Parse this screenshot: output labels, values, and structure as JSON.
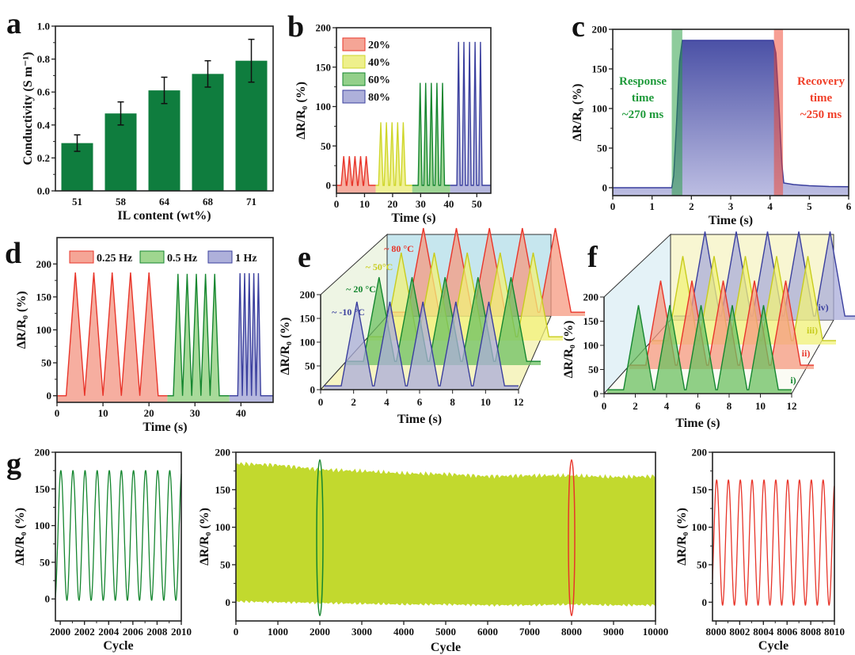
{
  "panel_labels": [
    "a",
    "b",
    "c",
    "d",
    "e",
    "f",
    "g"
  ],
  "chart_data": [
    {
      "panel": "a",
      "type": "bar",
      "categories": [
        "51",
        "58",
        "64",
        "68",
        "71"
      ],
      "values": [
        0.29,
        0.47,
        0.61,
        0.71,
        0.79
      ],
      "errors": [
        0.05,
        0.07,
        0.08,
        0.08,
        0.13
      ],
      "xlabel": "IL content (wt%)",
      "ylabel": "Conductivity (S m⁻¹)",
      "ylim": [
        0,
        1
      ],
      "yticks": [
        0,
        0.2,
        0.4,
        0.6,
        0.8,
        1.0
      ],
      "ytick_labels": [
        "0.0",
        "0.2",
        "0.4",
        "0.6",
        "0.8",
        "1.0"
      ],
      "color": "#0f7d3e"
    },
    {
      "panel": "b",
      "type": "area",
      "xlabel": "Time (s)",
      "ylabel": "ΔR/R₀ (%)",
      "xlim": [
        0,
        55
      ],
      "ylim": [
        -10,
        200
      ],
      "xticks": [
        0,
        10,
        20,
        30,
        40,
        50
      ],
      "yticks": [
        0,
        50,
        100,
        150,
        200
      ],
      "legend": "top-left",
      "series": [
        {
          "name": "20%",
          "color": "#e8352a",
          "fill": "#f5a596",
          "peak_value": 37,
          "peak_times": [
            2.6,
            4.6,
            6.6,
            8.6,
            10.6
          ],
          "half_width": 0.9,
          "x_range": [
            0,
            14
          ]
        },
        {
          "name": "40%",
          "color": "#cfd62a",
          "fill": "#eef08c",
          "peak_value": 80,
          "peak_times": [
            15.8,
            17.8,
            19.8,
            21.8,
            23.8
          ],
          "half_width": 0.8,
          "x_range": [
            14,
            27
          ]
        },
        {
          "name": "60%",
          "color": "#15862f",
          "fill": "#93d08a",
          "peak_value": 130,
          "peak_times": [
            29.8,
            31.8,
            33.8,
            35.8,
            37.8
          ],
          "half_width": 0.7,
          "x_range": [
            27,
            40.5
          ]
        },
        {
          "name": "80%",
          "color": "#3a3f9e",
          "fill": "#aeb0da",
          "peak_value": 182,
          "peak_times": [
            43.5,
            45.4,
            47.4,
            49.4,
            51.3
          ],
          "half_width": 0.6,
          "x_range": [
            40.5,
            55
          ]
        }
      ]
    },
    {
      "panel": "c",
      "type": "area",
      "xlabel": "Time (s)",
      "ylabel": "ΔR/R₀ (%)",
      "xlim": [
        0,
        6
      ],
      "ylim": [
        -10,
        200
      ],
      "xticks": [
        0,
        1,
        2,
        3,
        4,
        5,
        6
      ],
      "yticks": [
        0,
        50,
        100,
        150,
        200
      ],
      "x": [
        0,
        1.5,
        1.55,
        1.62,
        1.7,
        1.77,
        4.08,
        4.15,
        4.22,
        4.3,
        4.35,
        4.6,
        5,
        5.5,
        6
      ],
      "y": [
        0,
        0,
        15,
        80,
        160,
        186,
        186,
        170,
        110,
        30,
        6,
        4,
        2.5,
        1.5,
        1.2
      ],
      "color": "#3a3f9e",
      "response": {
        "x_range": [
          1.5,
          1.77
        ],
        "color": "#1e9a3a",
        "lines": [
          "Response",
          "time",
          "~270 ms"
        ]
      },
      "recovery": {
        "x_range": [
          4.1,
          4.33
        ],
        "color": "#f0402a",
        "lines": [
          "Recovery",
          "time",
          "~250 ms"
        ]
      }
    },
    {
      "panel": "d",
      "type": "area",
      "xlabel": "Time (s)",
      "ylabel": "ΔR/R₀ (%)",
      "xlim": [
        0,
        47
      ],
      "ylim": [
        -10,
        240
      ],
      "xticks": [
        0,
        10,
        20,
        30,
        40
      ],
      "yticks": [
        0,
        50,
        100,
        150,
        200
      ],
      "legend": "top",
      "series": [
        {
          "name": "0.25 Hz",
          "color": "#e8352a",
          "fill": "#f5a596",
          "peak_value": 187,
          "peak_times": [
            4,
            8,
            12,
            16,
            20
          ],
          "half_width": 2,
          "x_range": [
            0,
            24
          ]
        },
        {
          "name": "0.5 Hz",
          "color": "#15862f",
          "fill": "#9fd68f",
          "peak_value": 185,
          "peak_times": [
            26.3,
            28.3,
            30.3,
            32.3,
            34.3
          ],
          "half_width": 1,
          "x_range": [
            24,
            37.5
          ]
        },
        {
          "name": "1 Hz",
          "color": "#3a3f9e",
          "fill": "#aeb0da",
          "peak_value": 186,
          "peak_times": [
            39.8,
            40.8,
            41.8,
            42.8,
            43.8
          ],
          "half_width": 0.5,
          "x_range": [
            37.5,
            47
          ]
        }
      ]
    },
    {
      "panel": "e",
      "type": "area",
      "xlabel": "Time (s)",
      "ylabel": "ΔR/R₀ (%)",
      "xlim": [
        0,
        12
      ],
      "ylim": [
        0,
        200
      ],
      "xticks": [
        0,
        2,
        4,
        6,
        8,
        10,
        12
      ],
      "yticks": [
        0,
        50,
        100,
        150,
        200
      ],
      "series": [
        {
          "name": "~ -10 °C",
          "color": "#3a3f9e",
          "fill": "#a9acd9",
          "peak_value": 185,
          "peak_times": [
            2.2,
            4.2,
            6.2,
            8.2,
            10.2
          ]
        },
        {
          "name": "~ 20 °C",
          "color": "#15862f",
          "fill": "#6cc062",
          "peak_value": 185,
          "peak_times": [
            2.2,
            4.2,
            6.2,
            8.2,
            10.2
          ]
        },
        {
          "name": "~ 50°C",
          "color": "#c8cc1e",
          "fill": "#f1f27a",
          "peak_value": 185,
          "peak_times": [
            2.2,
            4.2,
            6.2,
            8.2,
            10.2
          ]
        },
        {
          "name": "~ 80 °C",
          "color": "#e8352a",
          "fill": "#f59a80",
          "peak_value": 185,
          "peak_times": [
            2.2,
            4.2,
            6.2,
            8.2,
            10.2
          ]
        }
      ]
    },
    {
      "panel": "f",
      "type": "area",
      "xlabel": "Time (s)",
      "ylabel": "ΔR/R₀ (%)",
      "xlim": [
        0,
        12
      ],
      "ylim": [
        0,
        200
      ],
      "xticks": [
        0,
        2,
        4,
        6,
        8,
        10,
        12
      ],
      "yticks": [
        0,
        50,
        100,
        150,
        200
      ],
      "series": [
        {
          "name": "i)",
          "color": "#15862f",
          "fill": "#6cc062",
          "peak_value": 183,
          "peak_times": [
            2.2,
            4.2,
            6.2,
            8.2,
            10.2
          ]
        },
        {
          "name": "ii)",
          "color": "#e8352a",
          "fill": "#f59a80",
          "peak_value": 183,
          "peak_times": [
            2.2,
            4.2,
            6.2,
            8.2,
            10.2
          ]
        },
        {
          "name": "iii)",
          "color": "#c8cc1e",
          "fill": "#f1f27a",
          "peak_value": 183,
          "peak_times": [
            2.2,
            4.2,
            6.2,
            8.2,
            10.2
          ]
        },
        {
          "name": "iv)",
          "color": "#3a3f9e",
          "fill": "#a9acd9",
          "peak_value": 183,
          "peak_times": [
            2.2,
            4.2,
            6.2,
            8.2,
            10.2
          ]
        }
      ]
    },
    {
      "panel": "g-left",
      "type": "line",
      "xlabel": "Cycle",
      "ylabel": "ΔR/R₀ (%)",
      "xlim": [
        1999.6,
        2010
      ],
      "ylim": [
        -30,
        200
      ],
      "xticks": [
        2000,
        2002,
        2004,
        2006,
        2008,
        2010
      ],
      "yticks": [
        0,
        50,
        100,
        150,
        200
      ],
      "amplitude": 175,
      "minimum": -2,
      "color": "#15862f"
    },
    {
      "panel": "g-middle",
      "type": "area",
      "xlabel": "Cycle",
      "ylabel": "ΔR/R₀ (%)",
      "xlim": [
        0,
        10000
      ],
      "ylim": [
        -25,
        200
      ],
      "xticks": [
        0,
        1000,
        2000,
        3000,
        4000,
        5000,
        6000,
        7000,
        8000,
        9000,
        10000
      ],
      "yticks": [
        0,
        50,
        100,
        150,
        200
      ],
      "x": [
        0,
        1000,
        2000,
        3000,
        4000,
        5000,
        6000,
        7000,
        8000,
        9000,
        10000
      ],
      "upper": [
        185,
        183,
        177,
        175,
        172,
        171,
        168,
        169,
        169,
        167,
        168
      ],
      "lower": [
        1,
        0,
        -1,
        -2,
        -3,
        -3,
        -4,
        -4,
        -3,
        -4,
        -4
      ],
      "color": "#c2d92e",
      "highlights": [
        {
          "x": 2000,
          "color": "#15862f"
        },
        {
          "x": 8000,
          "color": "#e8352a"
        }
      ]
    },
    {
      "panel": "g-right",
      "type": "line",
      "xlabel": "Cycle",
      "ylabel": "ΔR/R₀ (%)",
      "xlim": [
        7999.7,
        8010
      ],
      "ylim": [
        -25,
        200
      ],
      "xticks": [
        8000,
        8002,
        8004,
        8006,
        8008,
        8010
      ],
      "yticks": [
        0,
        50,
        100,
        150,
        200
      ],
      "amplitude": 163,
      "minimum": -4,
      "color": "#e8352a"
    }
  ]
}
